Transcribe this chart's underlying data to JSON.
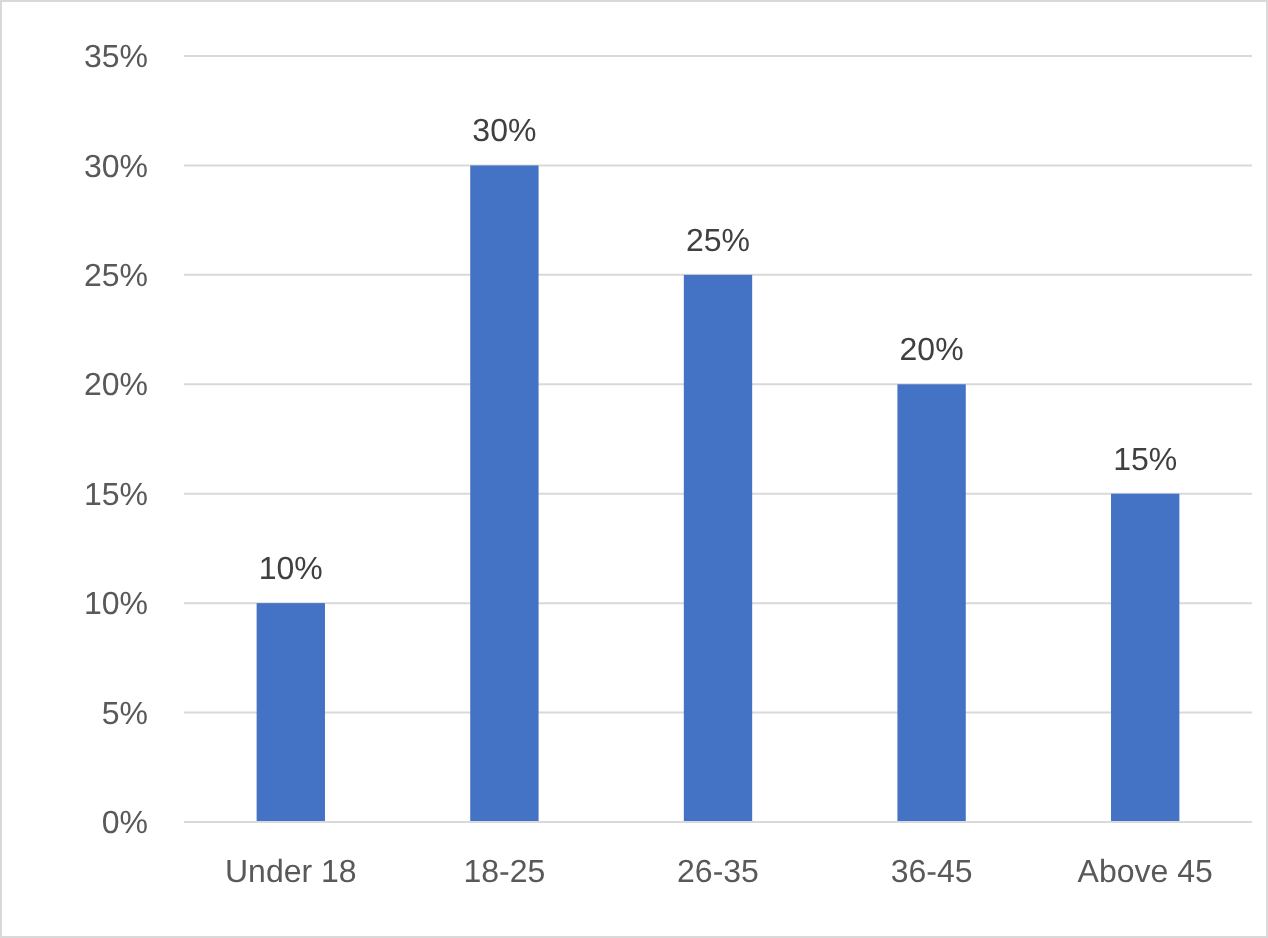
{
  "chart_data": {
    "type": "bar",
    "categories": [
      "Under 18",
      "18-25",
      "26-35",
      "36-45",
      "Above 45"
    ],
    "values": [
      10,
      30,
      25,
      20,
      15
    ],
    "color": "#4472c4",
    "value_labels": [
      "10%",
      "30%",
      "25%",
      "20%",
      "15%"
    ],
    "ylim": [
      0,
      35
    ],
    "yticks": [
      {
        "value": 0,
        "label": "0%"
      },
      {
        "value": 5,
        "label": "5%"
      },
      {
        "value": 10,
        "label": "10%"
      },
      {
        "value": 15,
        "label": "15%"
      },
      {
        "value": 20,
        "label": "20%"
      },
      {
        "value": 25,
        "label": "25%"
      },
      {
        "value": 30,
        "label": "30%"
      },
      {
        "value": 35,
        "label": "35%"
      }
    ],
    "grid": "y"
  }
}
